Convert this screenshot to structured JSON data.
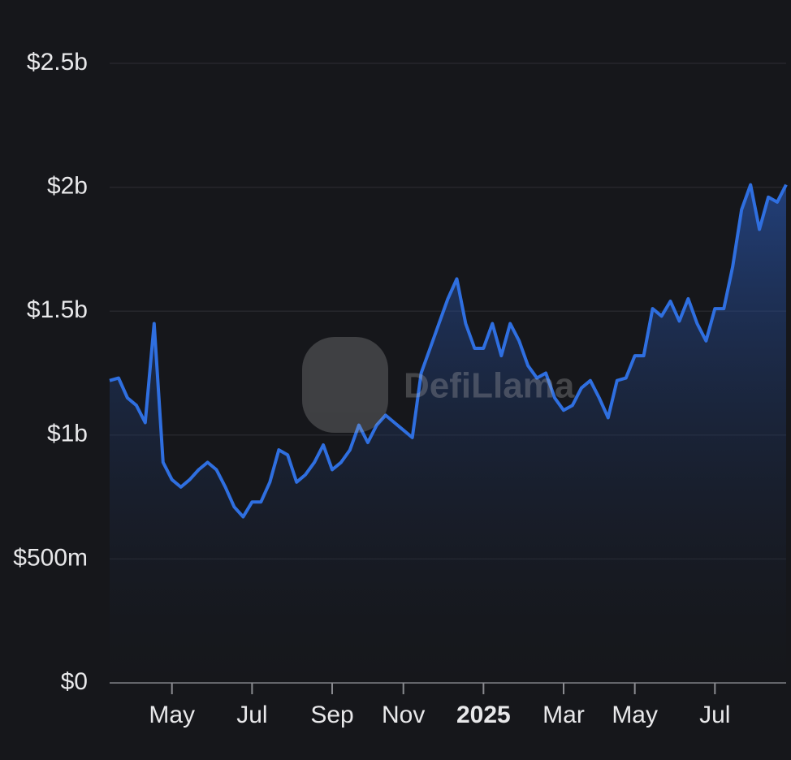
{
  "chart_data": {
    "type": "area",
    "watermark": "DefiLlama",
    "categories": [
      null,
      null,
      null,
      null,
      null,
      null,
      null,
      "May",
      null,
      null,
      null,
      null,
      null,
      null,
      null,
      null,
      "Jul",
      null,
      null,
      null,
      null,
      null,
      null,
      null,
      null,
      "Sep",
      null,
      null,
      null,
      null,
      null,
      null,
      null,
      "Nov",
      null,
      null,
      null,
      null,
      null,
      null,
      null,
      null,
      "2025",
      null,
      null,
      null,
      null,
      null,
      null,
      null,
      null,
      "Mar",
      null,
      null,
      null,
      null,
      null,
      null,
      null,
      "May",
      null,
      null,
      null,
      null,
      null,
      null,
      null,
      null,
      "Jul",
      null,
      null,
      null,
      null,
      null,
      null,
      null,
      null
    ],
    "series": [
      {
        "color": "#2f6fe0",
        "values": [
          1220000000,
          1230000000,
          1150000000,
          1120000000,
          1050000000,
          1450000000,
          890000000,
          820000000,
          790000000,
          820000000,
          860000000,
          890000000,
          860000000,
          790000000,
          710000000,
          670000000,
          730000000,
          730000000,
          810000000,
          940000000,
          920000000,
          810000000,
          840000000,
          890000000,
          960000000,
          860000000,
          890000000,
          940000000,
          1040000000,
          970000000,
          1040000000,
          1080000000,
          1050000000,
          1020000000,
          990000000,
          1250000000,
          1350000000,
          1450000000,
          1550000000,
          1630000000,
          1450000000,
          1350000000,
          1350000000,
          1450000000,
          1320000000,
          1450000000,
          1380000000,
          1280000000,
          1230000000,
          1250000000,
          1150000000,
          1100000000,
          1120000000,
          1190000000,
          1220000000,
          1150000000,
          1070000000,
          1220000000,
          1230000000,
          1320000000,
          1320000000,
          1510000000,
          1480000000,
          1540000000,
          1460000000,
          1550000000,
          1450000000,
          1380000000,
          1510000000,
          1510000000,
          1680000000,
          1910000000,
          2010000000,
          1830000000,
          1960000000,
          1940000000,
          2010000000
        ]
      }
    ],
    "ylim": [
      0,
      2500000000
    ],
    "yticks": [
      {
        "value": 0,
        "label": "$0"
      },
      {
        "value": 500000000,
        "label": "$500m"
      },
      {
        "value": 1000000000,
        "label": "$1b"
      },
      {
        "value": 1500000000,
        "label": "$1.5b"
      },
      {
        "value": 2000000000,
        "label": "$2b"
      },
      {
        "value": 2500000000,
        "label": "$2.5b"
      }
    ],
    "grid": true
  }
}
